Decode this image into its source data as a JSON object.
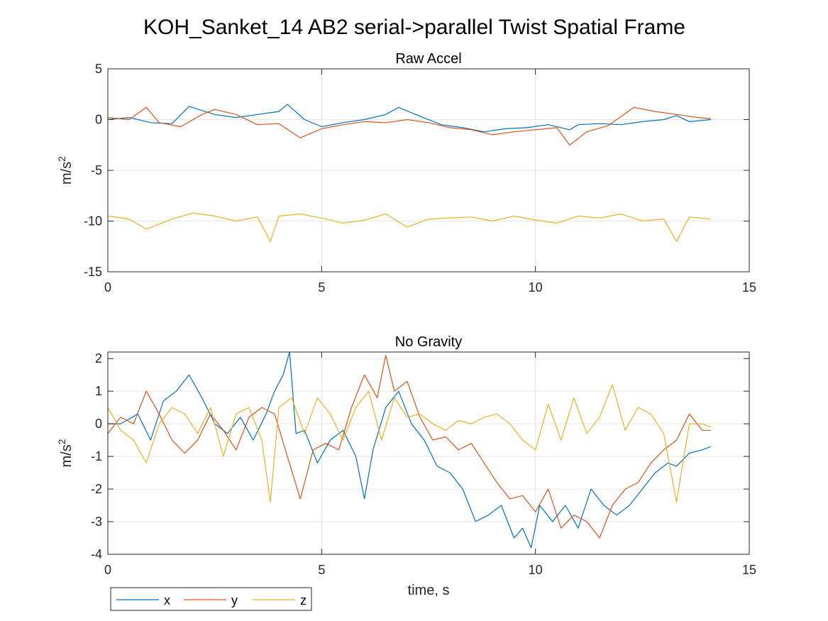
{
  "figure": {
    "title": "KOH_Sanket_14 AB2 serial->parallel Twist Spatial Frame"
  },
  "legend": {
    "placement": "bottom-left, below axes, horizontal",
    "entries": [
      "x",
      "y",
      "z"
    ]
  },
  "colors": {
    "x": "#0072BD",
    "y": "#D95319",
    "z": "#EDB120",
    "grid": "#e6e6e6",
    "axis": "#262626"
  },
  "chart_data": [
    {
      "type": "line",
      "title": "Raw Accel",
      "xlabel": "",
      "ylabel": "m/s",
      "ylabel_superscript": "2",
      "xlim": [
        0,
        15
      ],
      "ylim": [
        -15,
        5
      ],
      "xticks": [
        0,
        5,
        10,
        15
      ],
      "yticks": [
        -15,
        -10,
        -5,
        0,
        5
      ],
      "grid": true,
      "series": [
        {
          "name": "x",
          "x": [
            0,
            0.5,
            1.0,
            1.5,
            1.9,
            2.5,
            3.0,
            3.5,
            4.0,
            4.2,
            4.6,
            5.0,
            5.5,
            6.0,
            6.5,
            6.8,
            7.2,
            7.8,
            8.3,
            8.8,
            9.3,
            9.8,
            10.3,
            10.8,
            11.0,
            11.5,
            12.0,
            12.5,
            13.0,
            13.3,
            13.6,
            14.1
          ],
          "y": [
            0,
            0.2,
            -0.3,
            -0.4,
            1.3,
            0.5,
            0.2,
            0.5,
            0.8,
            1.5,
            0.0,
            -0.7,
            -0.3,
            0.0,
            0.5,
            1.2,
            0.5,
            -0.5,
            -0.8,
            -1.2,
            -0.9,
            -0.8,
            -0.5,
            -1.0,
            -0.5,
            -0.4,
            -0.5,
            -0.2,
            0.0,
            0.4,
            -0.2,
            0.0
          ]
        },
        {
          "name": "y",
          "x": [
            0,
            0.5,
            0.9,
            1.2,
            1.7,
            2.2,
            2.5,
            3.0,
            3.5,
            4.0,
            4.5,
            5.0,
            5.5,
            6.0,
            6.5,
            7.0,
            7.5,
            8.0,
            8.5,
            9.0,
            9.5,
            10.0,
            10.5,
            10.8,
            11.2,
            11.7,
            12.0,
            12.3,
            12.8,
            13.3,
            13.8,
            14.1
          ],
          "y": [
            0.2,
            0.0,
            1.2,
            -0.3,
            -0.7,
            0.5,
            1.0,
            0.5,
            -0.5,
            -0.4,
            -1.8,
            -0.9,
            -0.5,
            -0.2,
            -0.3,
            0.0,
            -0.3,
            -0.8,
            -1.0,
            -1.5,
            -1.2,
            -1.0,
            -0.8,
            -2.5,
            -1.2,
            -0.6,
            0.3,
            1.2,
            0.8,
            0.5,
            0.2,
            0.1
          ]
        },
        {
          "name": "z",
          "x": [
            0,
            0.5,
            0.9,
            1.5,
            2.0,
            2.5,
            3.0,
            3.5,
            3.8,
            4.0,
            4.5,
            5.0,
            5.5,
            6.0,
            6.5,
            7.0,
            7.5,
            8.0,
            8.5,
            9.0,
            9.5,
            10.0,
            10.5,
            11.0,
            11.5,
            12.0,
            12.5,
            13.0,
            13.3,
            13.6,
            14.1
          ],
          "y": [
            -9.5,
            -9.8,
            -10.8,
            -9.8,
            -9.2,
            -9.5,
            -10.0,
            -9.6,
            -12.0,
            -9.5,
            -9.3,
            -9.7,
            -10.2,
            -9.9,
            -9.3,
            -10.6,
            -9.8,
            -9.7,
            -9.6,
            -10.0,
            -9.5,
            -9.9,
            -10.2,
            -9.5,
            -9.7,
            -9.3,
            -10.0,
            -9.8,
            -12.0,
            -9.6,
            -9.8
          ]
        }
      ]
    },
    {
      "type": "line",
      "title": "No Gravity",
      "xlabel": "time, s",
      "ylabel": "m/s",
      "ylabel_superscript": "2",
      "xlim": [
        0,
        15
      ],
      "ylim": [
        -4,
        2.2
      ],
      "xticks": [
        0,
        5,
        10,
        15
      ],
      "yticks": [
        -4,
        -3,
        -2,
        -1,
        0,
        1,
        2
      ],
      "grid": true,
      "series": [
        {
          "name": "x",
          "x": [
            0,
            0.3,
            0.7,
            1.0,
            1.3,
            1.6,
            1.9,
            2.2,
            2.5,
            2.8,
            3.1,
            3.4,
            3.7,
            3.9,
            4.1,
            4.25,
            4.4,
            4.6,
            4.9,
            5.2,
            5.5,
            5.8,
            6.0,
            6.2,
            6.5,
            6.8,
            7.1,
            7.4,
            7.7,
            8.0,
            8.3,
            8.6,
            8.9,
            9.2,
            9.5,
            9.7,
            9.9,
            10.1,
            10.4,
            10.7,
            11.0,
            11.3,
            11.6,
            11.9,
            12.2,
            12.5,
            12.8,
            13.1,
            13.3,
            13.6,
            13.9,
            14.1
          ],
          "y": [
            0.0,
            0.0,
            0.3,
            -0.5,
            0.7,
            1.0,
            1.5,
            0.8,
            0.0,
            -0.3,
            0.2,
            -0.5,
            0.3,
            1.0,
            1.5,
            2.2,
            -0.3,
            -0.2,
            -1.2,
            -0.5,
            -0.2,
            -1.0,
            -2.3,
            -0.8,
            0.5,
            1.0,
            0.0,
            -0.5,
            -1.3,
            -1.5,
            -2.0,
            -3.0,
            -2.8,
            -2.5,
            -3.5,
            -3.2,
            -3.8,
            -2.5,
            -3.0,
            -2.5,
            -3.2,
            -2.0,
            -2.5,
            -2.8,
            -2.5,
            -2.0,
            -1.5,
            -1.2,
            -1.3,
            -0.9,
            -0.8,
            -0.7
          ]
        },
        {
          "name": "y",
          "x": [
            0,
            0.3,
            0.6,
            0.9,
            1.2,
            1.5,
            1.8,
            2.1,
            2.4,
            2.7,
            3.0,
            3.3,
            3.6,
            3.9,
            4.2,
            4.5,
            4.8,
            5.1,
            5.4,
            5.7,
            6.0,
            6.3,
            6.5,
            6.7,
            7.0,
            7.3,
            7.6,
            7.9,
            8.2,
            8.5,
            8.8,
            9.1,
            9.4,
            9.7,
            10.0,
            10.3,
            10.6,
            10.9,
            11.2,
            11.5,
            11.8,
            12.1,
            12.4,
            12.7,
            13.0,
            13.3,
            13.6,
            13.9,
            14.1
          ],
          "y": [
            -0.3,
            0.2,
            0.0,
            1.0,
            0.3,
            -0.5,
            -0.9,
            -0.5,
            0.3,
            -0.2,
            -0.8,
            0.2,
            0.5,
            0.3,
            -1.0,
            -2.3,
            -0.8,
            -0.6,
            -0.8,
            0.5,
            1.5,
            0.8,
            2.1,
            1.0,
            1.3,
            0.2,
            -0.5,
            -0.4,
            -0.8,
            -0.6,
            -1.2,
            -1.8,
            -2.3,
            -2.2,
            -2.7,
            -2.0,
            -3.2,
            -2.8,
            -3.0,
            -3.5,
            -2.5,
            -2.0,
            -1.8,
            -1.2,
            -0.8,
            -0.5,
            0.3,
            -0.2,
            -0.2
          ]
        },
        {
          "name": "z",
          "x": [
            0,
            0.3,
            0.6,
            0.9,
            1.2,
            1.5,
            1.8,
            2.1,
            2.4,
            2.7,
            3.0,
            3.3,
            3.6,
            3.8,
            4.0,
            4.3,
            4.6,
            4.9,
            5.2,
            5.5,
            5.8,
            6.1,
            6.4,
            6.7,
            7.0,
            7.3,
            7.6,
            7.9,
            8.2,
            8.5,
            8.8,
            9.1,
            9.4,
            9.7,
            10.0,
            10.3,
            10.6,
            10.9,
            11.2,
            11.5,
            11.8,
            12.1,
            12.4,
            12.7,
            13.0,
            13.3,
            13.6,
            13.9,
            14.1
          ],
          "y": [
            0.5,
            -0.2,
            -0.5,
            -1.2,
            0.0,
            0.5,
            0.3,
            -0.3,
            0.5,
            -1.0,
            0.3,
            0.5,
            -0.5,
            -2.4,
            0.5,
            0.8,
            -0.3,
            0.8,
            0.3,
            -0.5,
            0.5,
            1.0,
            -0.5,
            0.8,
            0.2,
            0.3,
            0.0,
            -0.2,
            0.1,
            0.0,
            0.2,
            0.3,
            0.0,
            -0.5,
            -0.8,
            0.6,
            -0.5,
            0.8,
            -0.3,
            0.2,
            1.2,
            -0.2,
            0.5,
            0.3,
            -0.3,
            -2.4,
            0.0,
            0.0,
            -0.1
          ]
        }
      ]
    }
  ]
}
